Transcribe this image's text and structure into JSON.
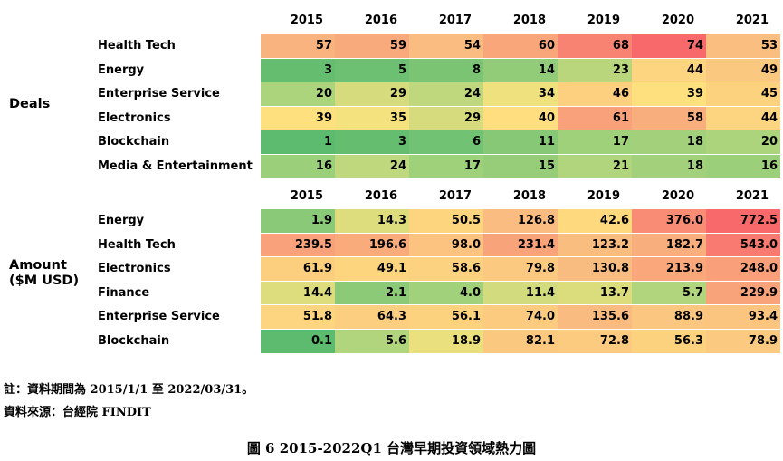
{
  "chart_data": [
    {
      "type": "heatmap",
      "section_label": "Deals",
      "columns": [
        "2015",
        "2016",
        "2017",
        "2018",
        "2019",
        "2020",
        "2021"
      ],
      "rows": [
        "Health Tech",
        "Energy",
        "Enterprise Service",
        "Electronics",
        "Blockchain",
        "Media & Entertainment"
      ],
      "values": [
        [
          57,
          59,
          54,
          60,
          68,
          74,
          53
        ],
        [
          3,
          5,
          8,
          14,
          23,
          44,
          49
        ],
        [
          20,
          29,
          24,
          34,
          46,
          39,
          45
        ],
        [
          39,
          35,
          29,
          40,
          61,
          58,
          44
        ],
        [
          1,
          3,
          6,
          11,
          17,
          18,
          20
        ],
        [
          16,
          24,
          17,
          15,
          21,
          18,
          16
        ]
      ],
      "value_labels": [
        [
          "57",
          "59",
          "54",
          "60",
          "68",
          "74",
          "53"
        ],
        [
          "3",
          "5",
          "8",
          "14",
          "23",
          "44",
          "49"
        ],
        [
          "20",
          "29",
          "24",
          "34",
          "46",
          "39",
          "45"
        ],
        [
          "39",
          "35",
          "29",
          "40",
          "61",
          "58",
          "44"
        ],
        [
          "1",
          "3",
          "6",
          "11",
          "17",
          "18",
          "20"
        ],
        [
          "16",
          "24",
          "17",
          "15",
          "21",
          "18",
          "16"
        ]
      ],
      "color_scale": "green-yellow-red"
    },
    {
      "type": "heatmap",
      "section_label_lines": [
        "Amount",
        "($M USD)"
      ],
      "columns": [
        "2015",
        "2016",
        "2017",
        "2018",
        "2019",
        "2020",
        "2021"
      ],
      "rows": [
        "Energy",
        "Health Tech",
        "Electronics",
        "Finance",
        "Enterprise Service",
        "Blockchain"
      ],
      "values": [
        [
          1.9,
          14.3,
          50.5,
          126.8,
          42.6,
          376.0,
          772.5
        ],
        [
          239.5,
          196.6,
          98.0,
          231.4,
          123.2,
          182.7,
          543.0
        ],
        [
          61.9,
          49.1,
          58.6,
          79.8,
          130.8,
          213.9,
          248.0
        ],
        [
          14.4,
          2.1,
          4.0,
          11.4,
          13.7,
          5.7,
          229.9
        ],
        [
          51.8,
          64.3,
          56.1,
          74.0,
          135.6,
          88.9,
          93.4
        ],
        [
          0.1,
          5.6,
          18.9,
          82.1,
          72.8,
          56.3,
          78.9
        ]
      ],
      "value_labels": [
        [
          "1.9",
          "14.3",
          "50.5",
          "126.8",
          "42.6",
          "376.0",
          "772.5"
        ],
        [
          "239.5",
          "196.6",
          "98.0",
          "231.4",
          "123.2",
          "182.7",
          "543.0"
        ],
        [
          "61.9",
          "49.1",
          "58.6",
          "79.8",
          "130.8",
          "213.9",
          "248.0"
        ],
        [
          "14.4",
          "2.1",
          "4.0",
          "11.4",
          "13.7",
          "5.7",
          "229.9"
        ],
        [
          "51.8",
          "64.3",
          "56.1",
          "74.0",
          "135.6",
          "88.9",
          "93.4"
        ],
        [
          "0.1",
          "5.6",
          "18.9",
          "82.1",
          "72.8",
          "56.3",
          "78.9"
        ]
      ],
      "color_scale": "green-yellow-red"
    }
  ],
  "colors": {
    "low": "#5dbb6f",
    "lower": "#a8d37c",
    "mid": "#ffe47e",
    "upper": "#f9b880",
    "high": "#f8696b"
  },
  "notes": [
    "註：資料期間為 2015/1/1 至 2022/03/31。",
    "資料來源：台經院 FINDIT"
  ],
  "caption": "圖 6   2015-2022Q1  台灣早期投資領域熱力圖"
}
